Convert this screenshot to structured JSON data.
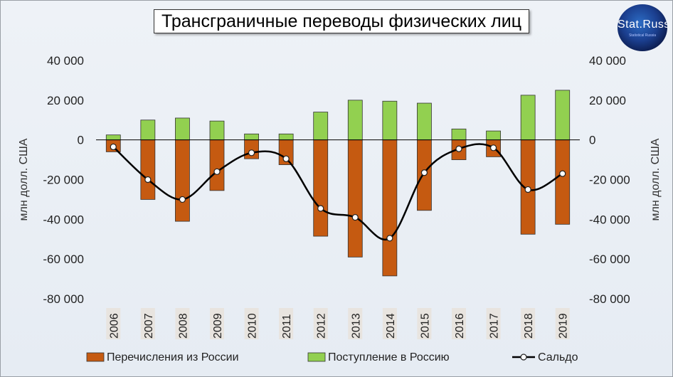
{
  "title": "Трансграничные переводы физических лиц",
  "logo": {
    "text": "Stat.Russ",
    "subtext": "Statistical Russia"
  },
  "chart_data": {
    "type": "bar",
    "categories": [
      "2006",
      "2007",
      "2008",
      "2009",
      "2010",
      "2011",
      "2012",
      "2013",
      "2014",
      "2015",
      "2016",
      "2017",
      "2018",
      "2019"
    ],
    "series": [
      {
        "name": "Перечисления  из России",
        "kind": "bar",
        "color": "#c55a11",
        "values": [
          -6000,
          -30000,
          -41000,
          -25500,
          -9500,
          -12500,
          -48500,
          -59000,
          -68500,
          -35500,
          -10000,
          -8500,
          -47500,
          -42500
        ]
      },
      {
        "name": "Поступление  в Россию",
        "kind": "bar",
        "color": "#92d050",
        "values": [
          2500,
          10000,
          11000,
          9500,
          3000,
          3000,
          14000,
          20000,
          19500,
          18500,
          5500,
          4500,
          22500,
          25000
        ]
      },
      {
        "name": "Сальдо",
        "kind": "line",
        "color": "#000000",
        "values": [
          -3500,
          -20000,
          -30000,
          -16000,
          -6500,
          -9500,
          -34500,
          -39000,
          -49500,
          -16500,
          -4500,
          -4000,
          -25000,
          -17000
        ]
      }
    ],
    "ylabel": "млн долл. США",
    "ylim": [
      -80000,
      40000
    ],
    "yticks": [
      40000,
      20000,
      0,
      -20000,
      -40000,
      -60000,
      -80000
    ],
    "ytick_labels": [
      "40 000",
      "20 000",
      "0",
      "-20 000",
      "-40 000",
      "-60 000",
      "-80 000"
    ],
    "secondary_axis": true,
    "grid": false,
    "legend": "bottom"
  }
}
